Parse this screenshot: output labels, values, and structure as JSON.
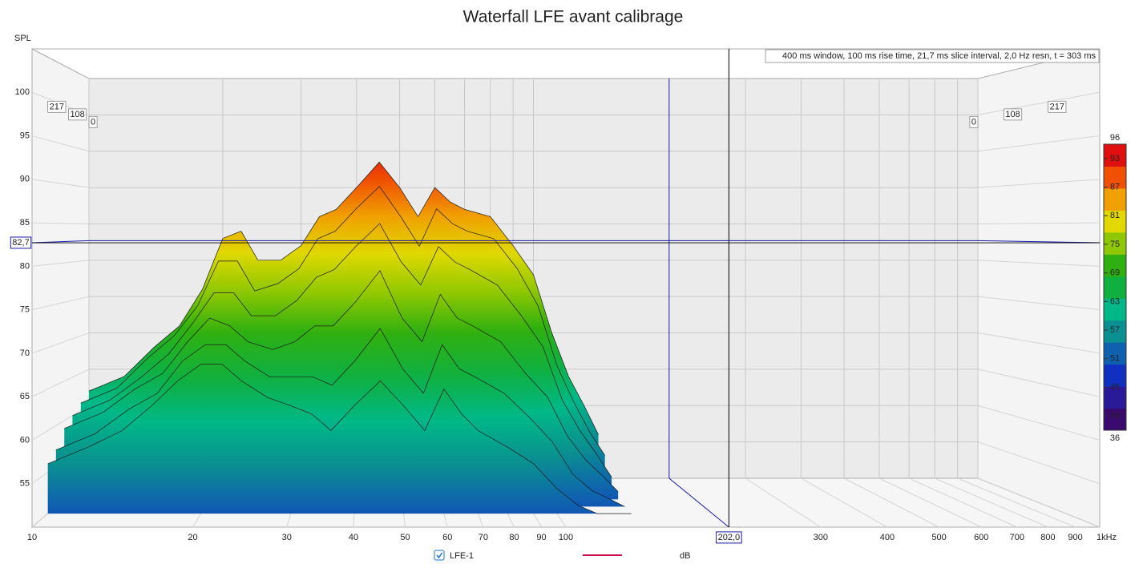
{
  "chart_data": {
    "type": "waterfall",
    "title": "Waterfall LFE avant calibrage",
    "y_label": "SPL",
    "info": "400 ms window, 100 ms rise time, 21,7 ms slice interval, 2,0 Hz resn, t = 303 ms",
    "log_x": true,
    "xlim": [
      10,
      1000
    ],
    "xticks": [
      10,
      20,
      30,
      40,
      50,
      60,
      70,
      80,
      90,
      100,
      300,
      400,
      500,
      600,
      700,
      800,
      900,
      {
        "value": 1000,
        "label": "1kHz"
      }
    ],
    "ylim": [
      50,
      105
    ],
    "yticks": [
      55,
      60,
      65,
      70,
      75,
      80,
      85,
      90,
      95,
      100
    ],
    "tlim": [
      0,
      300
    ],
    "tticks": [
      0,
      108,
      217
    ],
    "x": [
      10,
      12,
      14,
      16,
      18,
      20,
      22,
      24,
      27,
      30,
      33,
      36,
      40,
      45,
      50,
      55,
      60,
      65,
      70,
      80,
      90,
      100,
      110,
      120,
      130,
      140
    ],
    "series": [
      {
        "t": 0,
        "values": [
          62,
          64,
          68,
          71,
          76,
          83,
          84,
          80,
          80,
          82,
          86,
          87,
          90,
          93.5,
          90,
          86,
          90,
          88,
          87,
          86,
          82,
          78,
          70,
          64,
          60,
          56
        ]
      },
      {
        "t": 43,
        "values": [
          61,
          63,
          67,
          70,
          74,
          80,
          80,
          76,
          77,
          79,
          83,
          84,
          87,
          90,
          86,
          82,
          87,
          85,
          84,
          83,
          79,
          74,
          66,
          61,
          57,
          54
        ]
      },
      {
        "t": 87,
        "values": [
          60,
          62,
          65,
          68,
          72,
          76,
          76,
          73,
          73,
          75,
          78,
          79,
          82,
          85,
          80,
          77,
          82,
          80,
          79,
          77,
          73,
          69,
          62,
          58,
          55,
          52
        ]
      },
      {
        "t": 130,
        "values": [
          59,
          61,
          64,
          66,
          70,
          73,
          72,
          70,
          69,
          70,
          72,
          72,
          75,
          79,
          73,
          70,
          76,
          73,
          72,
          70,
          66,
          63,
          58,
          55,
          53,
          51
        ]
      },
      {
        "t": 174,
        "values": [
          57,
          59,
          62,
          64,
          68,
          70,
          70,
          68,
          66,
          66,
          66,
          65,
          68,
          72,
          67,
          64,
          70,
          67,
          66,
          64,
          61,
          58,
          54,
          52,
          51,
          50
        ]
      },
      {
        "t": 217,
        "values": [
          56,
          58,
          60,
          63,
          66,
          68,
          68,
          66,
          64,
          63,
          62,
          60,
          63,
          66,
          63,
          60,
          65,
          62,
          60,
          58,
          56,
          53,
          51,
          50,
          50,
          50
        ]
      }
    ],
    "cursor": {
      "x": {
        "value": 202,
        "label": "202,0"
      },
      "y": {
        "value": 82.7,
        "label": "82,7"
      },
      "color": "#1a1aa8"
    },
    "colorbar": {
      "lim": [
        36,
        96
      ],
      "ticks": [
        39,
        45,
        51,
        57,
        63,
        69,
        75,
        81,
        87,
        93
      ],
      "colors": [
        "#3a0a6e",
        "#2a1a9a",
        "#1030c0",
        "#1060b0",
        "#0a9090",
        "#00b887",
        "#10b040",
        "#30b010",
        "#90c800",
        "#e0d800",
        "#f0a000",
        "#f05000",
        "#e01010"
      ]
    },
    "legend": {
      "name": "LFE-1",
      "color": "#c8104a",
      "unit": "dB"
    }
  }
}
